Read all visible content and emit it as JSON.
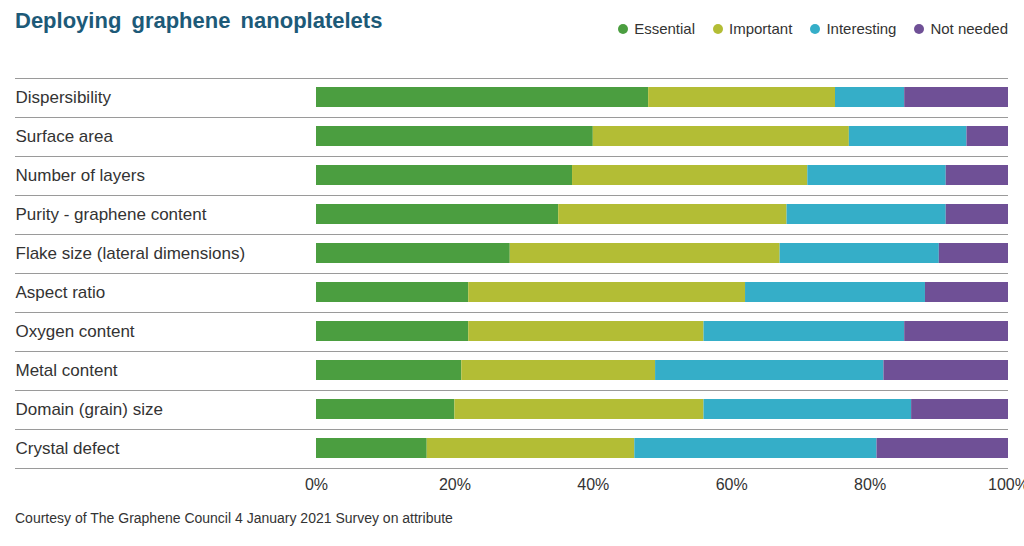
{
  "chart_data": {
    "type": "bar",
    "title": "Deploying graphene nanoplatelets",
    "orientation": "horizontal",
    "stacked": true,
    "grid": false,
    "legend": "top-right",
    "caption": "Courtesy of The Graphene Council 4 January 2021 Survey on attribute",
    "categories": [
      "Dispersibility",
      "Surface area",
      "Number of layers",
      "Purity - graphene content",
      "Flake size (lateral dimensions)",
      "Aspect ratio",
      "Oxygen content",
      "Metal content",
      "Domain (grain) size",
      "Crystal defect"
    ],
    "series": [
      {
        "name": "Essential",
        "color": "#4b9e40",
        "values": [
          48,
          40,
          37,
          35,
          28,
          22,
          22,
          21,
          20,
          16
        ]
      },
      {
        "name": "Important",
        "color": "#b3bd35",
        "values": [
          27,
          37,
          34,
          33,
          39,
          40,
          34,
          28,
          36,
          30
        ]
      },
      {
        "name": "Interesting",
        "color": "#35aec8",
        "values": [
          10,
          17,
          20,
          23,
          23,
          26,
          29,
          33,
          30,
          35
        ]
      },
      {
        "name": "Not needed",
        "color": "#6f5096",
        "values": [
          15,
          6,
          9,
          9,
          10,
          12,
          15,
          18,
          14,
          19
        ]
      }
    ],
    "xlim": [
      0,
      100
    ],
    "xticks": [
      {
        "value": 0,
        "label": "0%"
      },
      {
        "value": 20,
        "label": "20%"
      },
      {
        "value": 40,
        "label": "40%"
      },
      {
        "value": 60,
        "label": "60%"
      },
      {
        "value": 80,
        "label": "80%"
      },
      {
        "value": 100,
        "label": "100%"
      }
    ]
  }
}
